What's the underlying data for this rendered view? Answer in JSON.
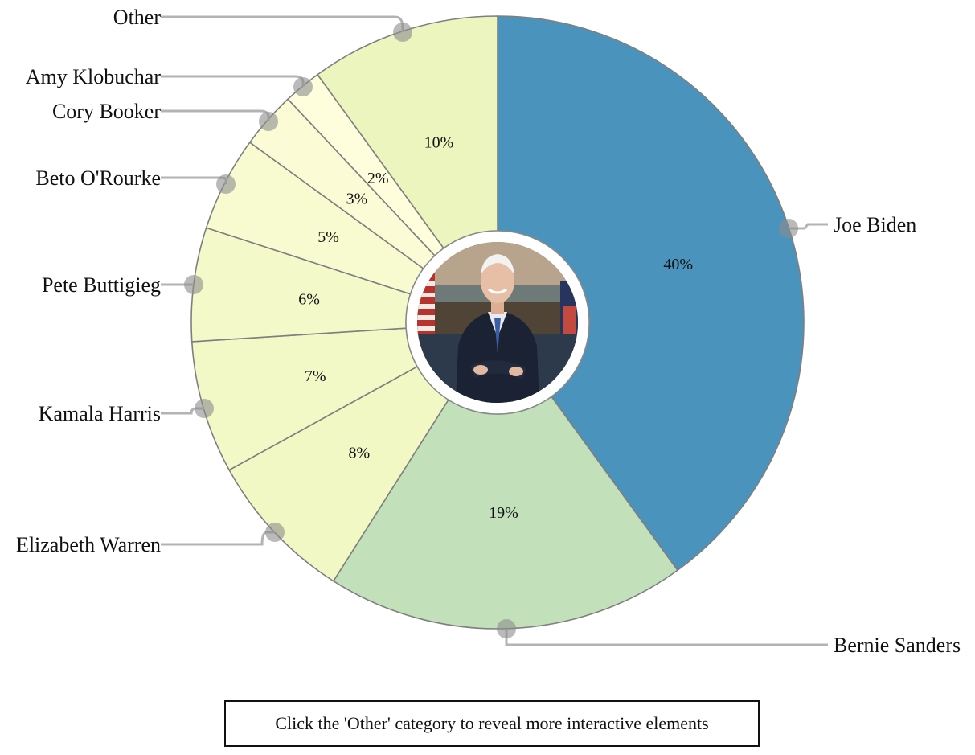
{
  "chart_data": {
    "type": "pie",
    "donut": true,
    "title": "",
    "slices": [
      {
        "name": "Joe Biden",
        "value": 40,
        "label": "40%",
        "color": "#4a93bd"
      },
      {
        "name": "Bernie Sanders",
        "value": 19,
        "label": "19%",
        "color": "#c2e1bb"
      },
      {
        "name": "Elizabeth Warren",
        "value": 8,
        "label": "8%",
        "color": "#f2f8c4"
      },
      {
        "name": "Kamala Harris",
        "value": 7,
        "label": "7%",
        "color": "#f3f8c7"
      },
      {
        "name": "Pete Buttigieg",
        "value": 6,
        "label": "6%",
        "color": "#f4f9ca"
      },
      {
        "name": "Beto O'Rourke",
        "value": 5,
        "label": "5%",
        "color": "#f8fbcf"
      },
      {
        "name": "Cory Booker",
        "value": 3,
        "label": "3%",
        "color": "#fbfcd6"
      },
      {
        "name": "Amy Klobuchar",
        "value": 2,
        "label": "2%",
        "color": "#fefedd"
      },
      {
        "name": "Other",
        "value": 10,
        "label": "10%",
        "color": "#ebf5bd"
      }
    ],
    "center_image": "portrait-joe-biden"
  },
  "hint": {
    "text": "Click the 'Other' category to reveal more interactive elements"
  }
}
